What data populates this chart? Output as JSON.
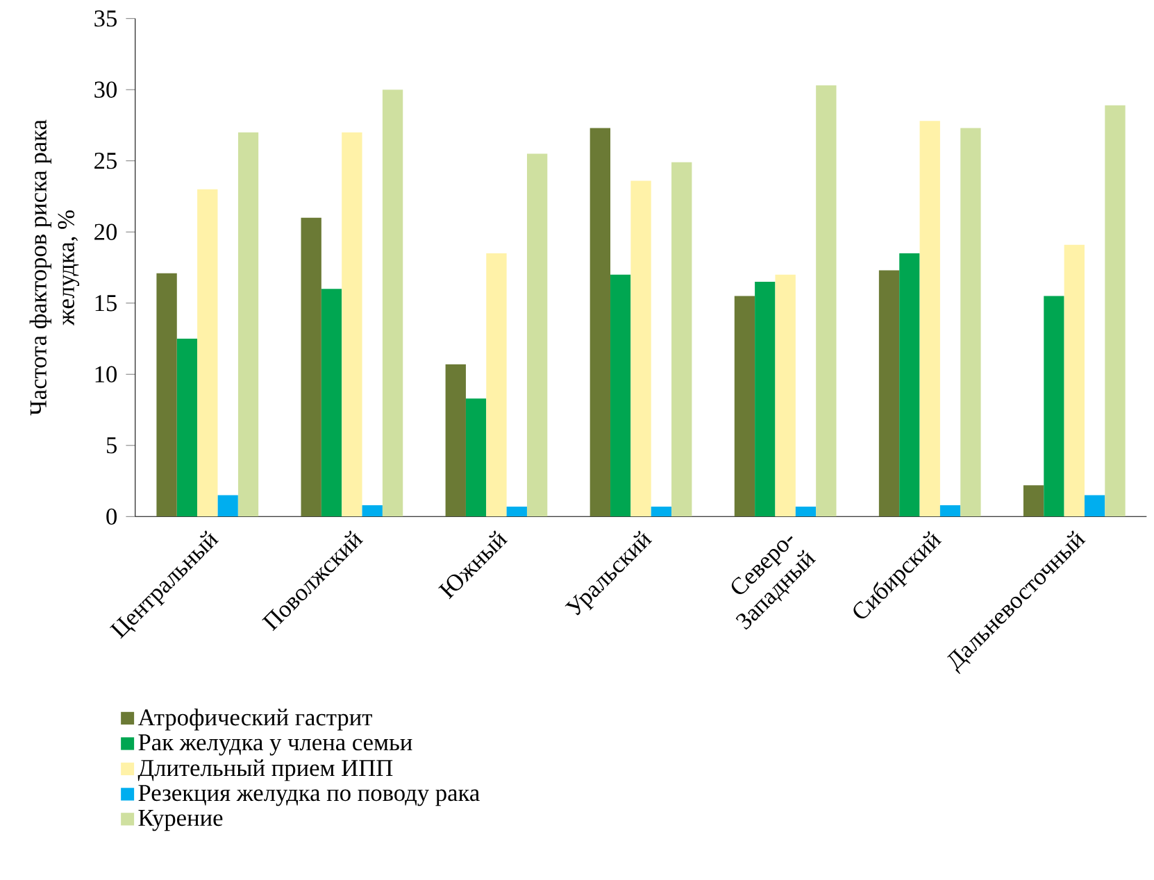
{
  "chart_data": {
    "type": "bar",
    "ylabel": "Частота факторов риска рака желудка, %",
    "categories": [
      "Центральный",
      "Поволжский",
      "Южный",
      "Уральский",
      "Северо-Западный",
      "Сибирский",
      "Дальневосточный"
    ],
    "series": [
      {
        "name": "Атрофический гастрит",
        "color": "#6b7a35",
        "values": [
          17.1,
          21.0,
          10.7,
          27.3,
          15.5,
          17.3,
          2.2
        ]
      },
      {
        "name": "Рак желудка у члена семьи",
        "color": "#00a651",
        "values": [
          12.5,
          16.0,
          8.3,
          17.0,
          16.5,
          18.5,
          15.5
        ]
      },
      {
        "name": "Длительный прием ИПП",
        "color": "#fff2a8",
        "values": [
          23.0,
          27.0,
          18.5,
          23.6,
          17.0,
          27.8,
          19.1
        ]
      },
      {
        "name": "Резекция желудка по поводу рака",
        "color": "#00aeef",
        "values": [
          1.5,
          0.8,
          0.7,
          0.7,
          0.7,
          0.8,
          1.5
        ]
      },
      {
        "name": "Курение",
        "color": "#cfe0a0",
        "values": [
          27.0,
          30.0,
          25.5,
          24.9,
          30.3,
          27.3,
          28.9
        ]
      }
    ],
    "ylim": [
      0,
      35
    ],
    "yticks": [
      0,
      5,
      10,
      15,
      20,
      25,
      30,
      35
    ],
    "grid": false,
    "legend": "bottom"
  }
}
